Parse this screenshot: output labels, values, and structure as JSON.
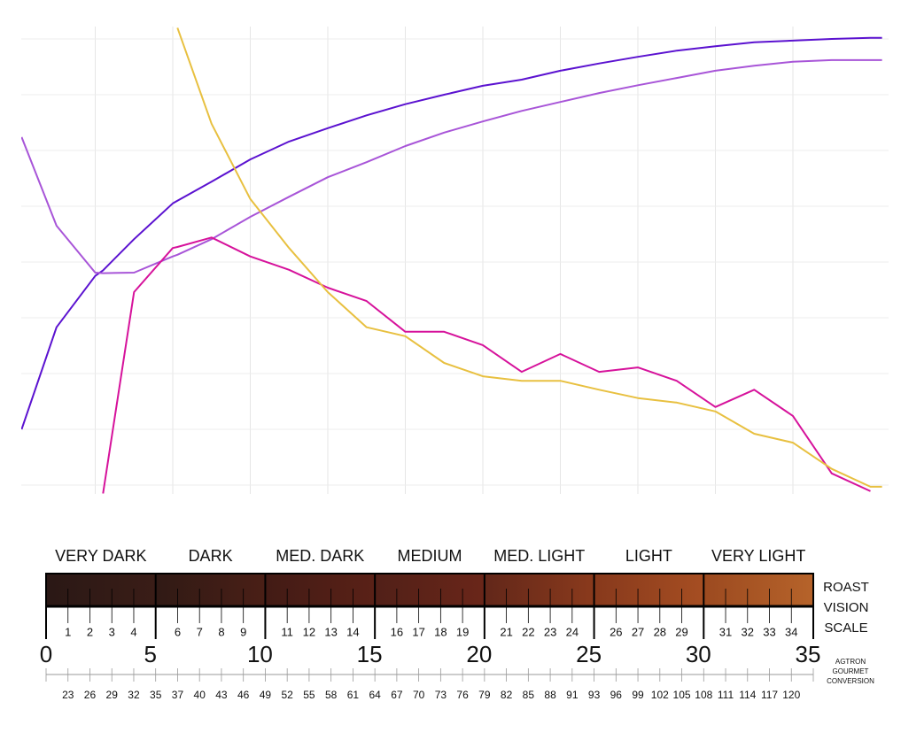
{
  "chart_data": {
    "type": "line",
    "grid": true,
    "xlim": [
      0,
      11.2
    ],
    "ylim": [
      -0.2,
      8.2
    ],
    "xticks": [
      1,
      2,
      3,
      4,
      5,
      6,
      7,
      8,
      9,
      10
    ],
    "yticks": [
      0,
      1,
      2,
      3,
      4,
      5,
      6,
      7,
      8
    ],
    "x": [
      0.05,
      0.5,
      1,
      1.1,
      1.5,
      2,
      2.06,
      2.5,
      3,
      3.5,
      4,
      4.5,
      5,
      5.5,
      6,
      6.5,
      7,
      7.5,
      8,
      8.5,
      9,
      9.5,
      10,
      10.5,
      11,
      11.15
    ],
    "series": [
      {
        "color": "#5b12d0",
        "values": [
          1.0,
          2.83,
          3.75,
          3.85,
          4.41,
          5.05,
          5.1,
          5.44,
          5.84,
          6.16,
          6.4,
          6.63,
          6.83,
          7.0,
          7.16,
          7.27,
          7.43,
          7.56,
          7.68,
          7.79,
          7.87,
          7.94,
          7.97,
          8.0,
          8.02,
          8.02
        ]
      },
      {
        "color": "#a855d8",
        "values": [
          6.24,
          4.65,
          3.81,
          3.8,
          3.81,
          4.1,
          4.13,
          4.41,
          4.81,
          5.17,
          5.52,
          5.79,
          6.08,
          6.32,
          6.52,
          6.71,
          6.87,
          7.03,
          7.17,
          7.3,
          7.43,
          7.52,
          7.59,
          7.62,
          7.62,
          7.62
        ]
      },
      {
        "color": "#d6129b",
        "values": [
          null,
          null,
          null,
          -0.15,
          3.46,
          4.25,
          4.27,
          4.44,
          4.1,
          3.86,
          3.54,
          3.3,
          2.75,
          2.75,
          2.51,
          2.03,
          2.35,
          2.03,
          2.11,
          1.87,
          1.4,
          1.71,
          1.24,
          0.21,
          -0.11,
          null
        ]
      },
      {
        "color": "#e8c040",
        "values": [
          null,
          null,
          null,
          null,
          null,
          null,
          8.2,
          6.48,
          5.13,
          4.25,
          3.46,
          2.83,
          2.67,
          2.19,
          1.95,
          1.87,
          1.87,
          1.71,
          1.56,
          1.48,
          1.32,
          0.92,
          0.76,
          0.29,
          -0.03,
          -0.03
        ]
      }
    ]
  },
  "roast_scale": {
    "categories": [
      "VERY DARK",
      "DARK",
      "MED. DARK",
      "MEDIUM",
      "MED. LIGHT",
      "LIGHT",
      "VERY LIGHT"
    ],
    "title": [
      "ROAST",
      "VISION",
      "SCALE"
    ],
    "ticks": [
      0,
      1,
      2,
      3,
      4,
      5,
      6,
      7,
      8,
      9,
      10,
      11,
      12,
      13,
      14,
      15,
      16,
      17,
      18,
      19,
      20,
      21,
      22,
      23,
      24,
      25,
      26,
      27,
      28,
      29,
      30,
      31,
      32,
      33,
      34,
      35
    ],
    "agtron_title": [
      "AGTRON",
      "GOURMET",
      "CONVERSION"
    ],
    "agtron": [
      23,
      26,
      29,
      32,
      35,
      37,
      40,
      43,
      46,
      49,
      52,
      55,
      58,
      61,
      64,
      67,
      70,
      73,
      76,
      79,
      82,
      85,
      88,
      91,
      93,
      96,
      99,
      102,
      105,
      108,
      111,
      114,
      117,
      120
    ]
  }
}
